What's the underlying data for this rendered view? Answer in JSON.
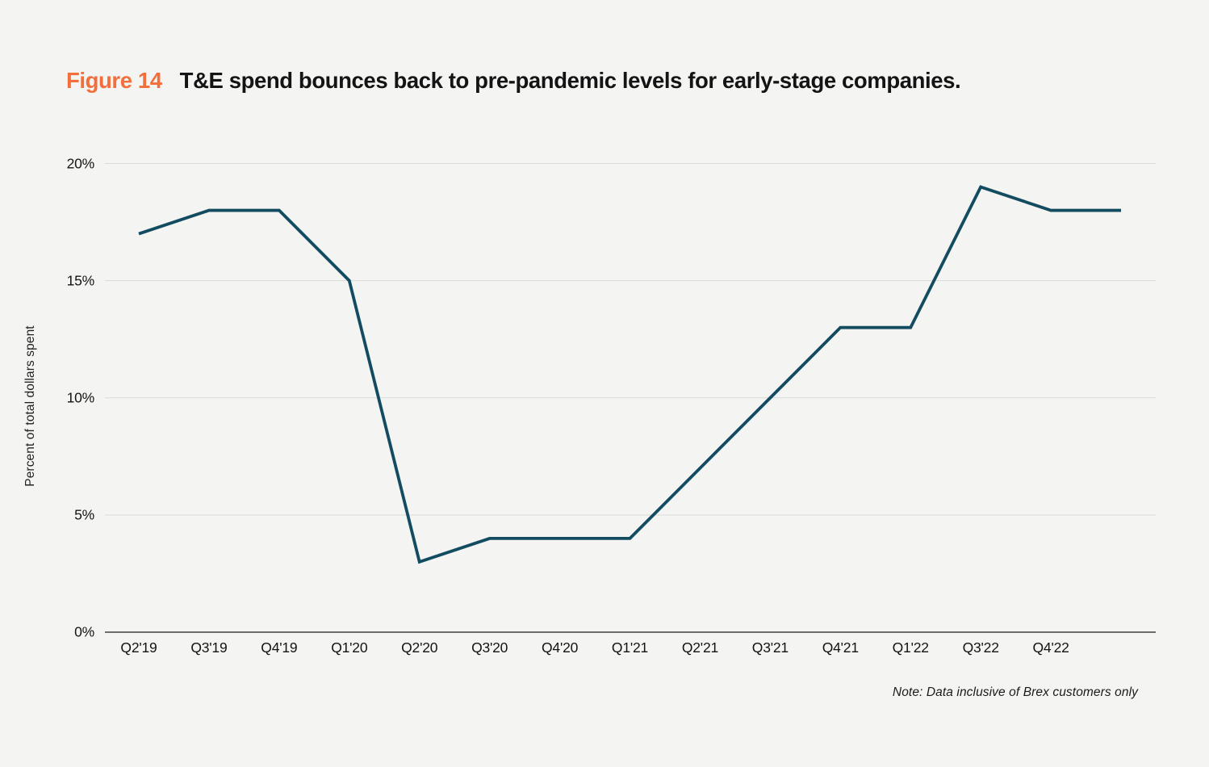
{
  "figure": {
    "label": "Figure 14",
    "title": "T&E spend bounces back to pre-pandemic levels for early-stage companies."
  },
  "colors": {
    "background": "#F4F4F2",
    "accent_orange": "#F26F3C",
    "line": "#134B60",
    "gridline": "#DADAD8",
    "axis_line": "#5A5A58",
    "text": "#141414"
  },
  "chart_data": {
    "type": "line",
    "title": "T&E spend bounces back to pre-pandemic levels for early-stage companies.",
    "figure_label": "Figure 14",
    "xlabel": "",
    "ylabel": "Percent of total dollars spent",
    "categories": [
      "Q2'19",
      "Q3'19",
      "Q4'19",
      "Q1'20",
      "Q2'20",
      "Q3'20",
      "Q4'20",
      "Q1'21",
      "Q2'21",
      "Q3'21",
      "Q4'21",
      "Q1'22",
      "Q3'22",
      "Q4'22"
    ],
    "values": [
      17,
      18,
      18,
      15,
      3,
      4,
      4,
      4,
      7,
      10,
      13,
      13,
      19,
      18,
      18
    ],
    "unlabeled_trailing_points": 1,
    "ylim": [
      0,
      20
    ],
    "yticks": [
      0,
      5,
      10,
      15,
      20
    ],
    "ytick_labels": [
      "0%",
      "5%",
      "10%",
      "15%",
      "20%"
    ],
    "grid": "horizontal",
    "legend": "none",
    "line_color": "#134B60",
    "grid_color": "#DADAD8",
    "axis_color": "#5A5A58",
    "note": "Note: Data inclusive of Brex customers only"
  }
}
